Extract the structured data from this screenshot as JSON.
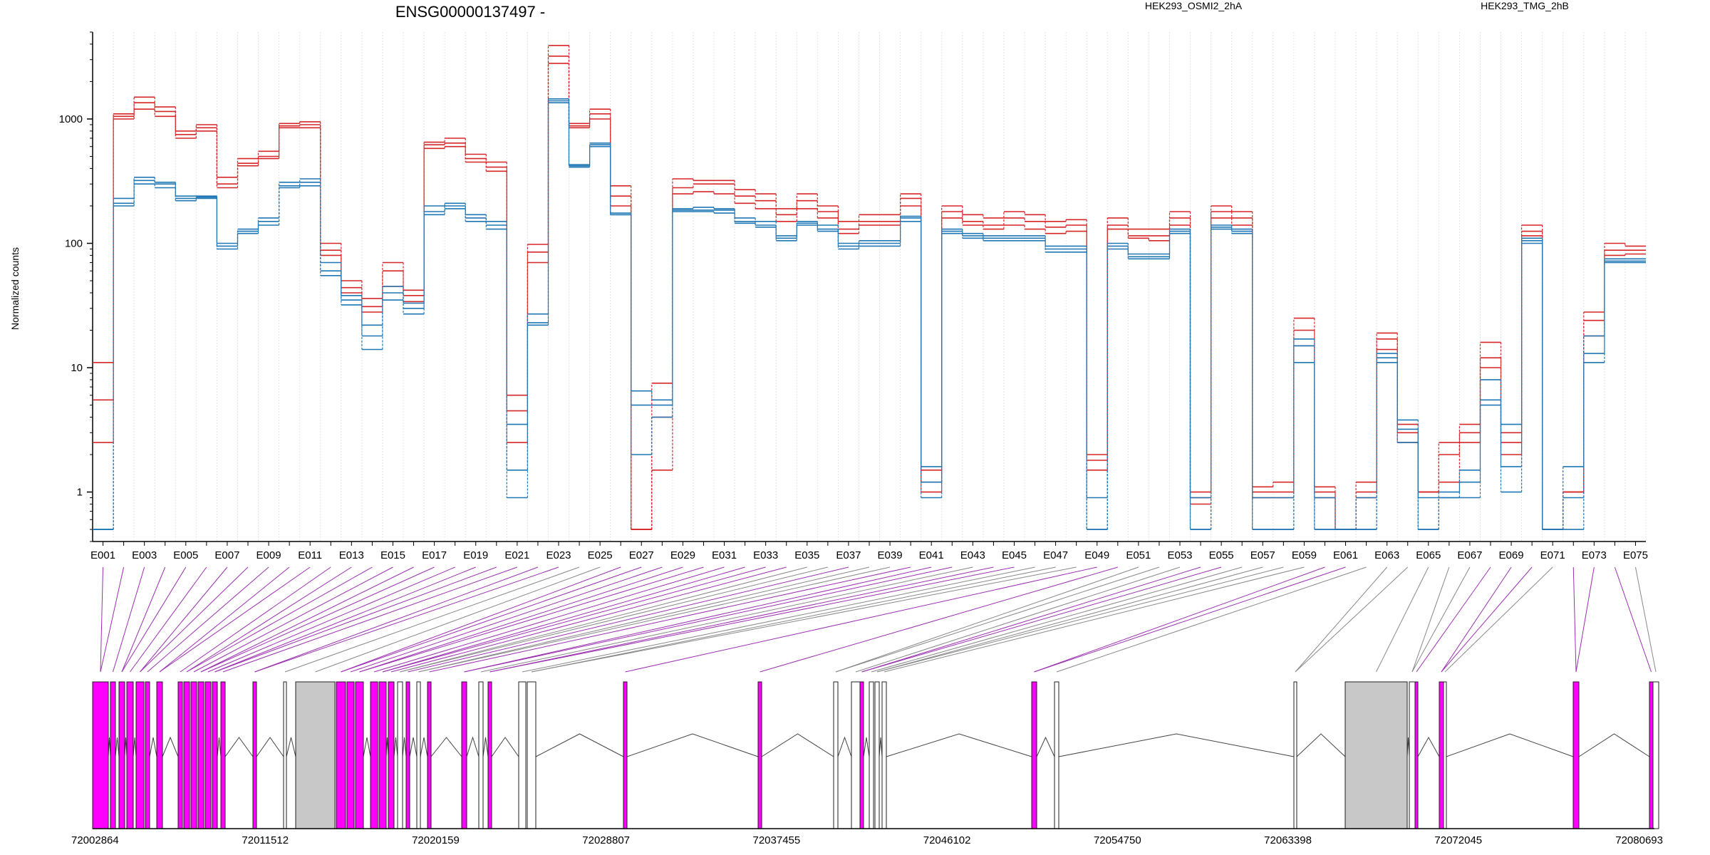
{
  "title": "ENSG00000137497 -",
  "legend": [
    {
      "name": "HEK293_OSMI2_2hA",
      "color": "#d62728"
    },
    {
      "name": "HEK293_TMG_2hB",
      "color": "#1f77b4"
    }
  ],
  "colors": {
    "highlight_exon": "#ff00ff",
    "exon_line": "#9b30b0",
    "plain_line": "#888888",
    "grey_block": "#c8c8c8"
  },
  "chart_data": {
    "type": "line",
    "title": "ENSG00000137497 -",
    "ylabel": "Normalized counts",
    "yscale": "log",
    "ylim": [
      0.4,
      5000
    ],
    "y_ticks": [
      1,
      10,
      100,
      1000
    ],
    "y_tick_labels": [
      "1",
      "10",
      "100",
      "1000"
    ],
    "x_ticklabels": [
      "E001",
      "E003",
      "E005",
      "E007",
      "E009",
      "E011",
      "E013",
      "E015",
      "E017",
      "E019",
      "E021",
      "E023",
      "E025",
      "E027",
      "E029",
      "E031",
      "E033",
      "E035",
      "E037",
      "E039",
      "E041",
      "E043",
      "E045",
      "E047",
      "E049",
      "E051",
      "E053",
      "E055",
      "E057",
      "E059",
      "E061",
      "E063",
      "E065",
      "E067",
      "E069",
      "E071",
      "E073",
      "E075"
    ],
    "exon_count": 75,
    "series": [
      {
        "name": "HEK293_OSMI2_2hA",
        "color": "#d62728",
        "values": [
          11,
          1100,
          1500,
          1250,
          800,
          900,
          340,
          480,
          550,
          920,
          950,
          100,
          50,
          36,
          70,
          42,
          650,
          700,
          520,
          450,
          6,
          98,
          3900,
          920,
          1200,
          290,
          0.5,
          7.5,
          330,
          320,
          320,
          270,
          250,
          190,
          250,
          200,
          150,
          170,
          170,
          250,
          1.5,
          200,
          170,
          160,
          180,
          170,
          150,
          155,
          2,
          160,
          130,
          130,
          180,
          1,
          200,
          180,
          1.1,
          1.2,
          25,
          1.1,
          0.5,
          1.2,
          19,
          3.5,
          1,
          2.5,
          3.5,
          16,
          3,
          140,
          0.5,
          1,
          28,
          100,
          95
        ]
      },
      {
        "name": "HEK293_OSMI2_2hA",
        "color": "#d62728",
        "values": [
          5.5,
          1050,
          1350,
          1150,
          750,
          850,
          300,
          440,
          500,
          880,
          900,
          88,
          44,
          31,
          60,
          38,
          620,
          640,
          480,
          410,
          4.5,
          85,
          3200,
          880,
          1100,
          240,
          0.5,
          4,
          280,
          300,
          300,
          240,
          220,
          170,
          220,
          180,
          130,
          150,
          150,
          230,
          1.2,
          180,
          150,
          140,
          160,
          150,
          135,
          140,
          1.8,
          140,
          115,
          115,
          160,
          0.9,
          180,
          160,
          1,
          1,
          20,
          1,
          0.5,
          1,
          17,
          3,
          1,
          2,
          3,
          12,
          2.5,
          125,
          0.5,
          1,
          24,
          88,
          88
        ]
      },
      {
        "name": "HEK293_OSMI2_2hA",
        "color": "#d62728",
        "values": [
          2.5,
          1000,
          1200,
          1050,
          700,
          800,
          280,
          420,
          480,
          850,
          850,
          80,
          40,
          28,
          45,
          34,
          580,
          600,
          450,
          380,
          2.5,
          70,
          2800,
          850,
          1000,
          200,
          0.5,
          1.5,
          250,
          260,
          250,
          210,
          190,
          150,
          190,
          160,
          120,
          140,
          140,
          200,
          1,
          160,
          140,
          130,
          140,
          130,
          120,
          125,
          1.5,
          130,
          110,
          105,
          140,
          0.8,
          160,
          140,
          0.9,
          0.9,
          15,
          0.9,
          0.5,
          0.9,
          14,
          2.5,
          1,
          1.2,
          2.5,
          10,
          2,
          115,
          0.5,
          1,
          18,
          80,
          82
        ]
      },
      {
        "name": "HEK293_TMG_2hB",
        "color": "#1f77b4",
        "values": [
          0.5,
          230,
          340,
          310,
          240,
          240,
          100,
          130,
          160,
          310,
          330,
          70,
          38,
          22,
          45,
          33,
          200,
          210,
          170,
          150,
          3.5,
          27,
          1450,
          430,
          640,
          175,
          6.5,
          5.5,
          190,
          195,
          190,
          160,
          150,
          115,
          150,
          140,
          100,
          105,
          105,
          165,
          1.6,
          130,
          120,
          115,
          115,
          115,
          95,
          95,
          0.9,
          100,
          82,
          82,
          130,
          0.9,
          140,
          130,
          0.9,
          0.9,
          17,
          0.9,
          0.5,
          0.9,
          13,
          3.8,
          0.9,
          1,
          1.5,
          8,
          3.5,
          110,
          0.5,
          1.6,
          18,
          75,
          75
        ]
      },
      {
        "name": "HEK293_TMG_2hB",
        "color": "#1f77b4",
        "values": [
          0.5,
          210,
          320,
          300,
          230,
          235,
          95,
          125,
          150,
          290,
          310,
          60,
          35,
          18,
          40,
          30,
          180,
          200,
          160,
          140,
          1.5,
          23,
          1400,
          420,
          620,
          170,
          5,
          5,
          185,
          185,
          185,
          150,
          140,
          110,
          145,
          130,
          95,
          100,
          100,
          160,
          1.2,
          125,
          115,
          110,
          110,
          110,
          90,
          90,
          0.5,
          95,
          78,
          78,
          125,
          0.5,
          135,
          125,
          0.5,
          0.5,
          15,
          0.5,
          0.5,
          0.5,
          12,
          3.2,
          0.5,
          0.9,
          1.2,
          5.5,
          1.6,
          105,
          0.5,
          0.9,
          13,
          72,
          72
        ]
      },
      {
        "name": "HEK293_TMG_2hB",
        "color": "#1f77b4",
        "values": [
          0.5,
          200,
          300,
          280,
          220,
          230,
          90,
          120,
          140,
          280,
          290,
          55,
          32,
          14,
          35,
          27,
          170,
          190,
          150,
          130,
          0.9,
          22,
          1350,
          410,
          600,
          170,
          2,
          4,
          180,
          180,
          175,
          145,
          135,
          105,
          140,
          125,
          90,
          95,
          95,
          150,
          0.9,
          120,
          110,
          105,
          105,
          105,
          85,
          85,
          0.5,
          90,
          75,
          75,
          120,
          0.5,
          130,
          120,
          0.5,
          0.5,
          11,
          0.5,
          0.5,
          0.5,
          11,
          2.5,
          0.5,
          0.9,
          0.9,
          5,
          1,
          100,
          0.5,
          0.5,
          11,
          70,
          70
        ]
      }
    ],
    "genomic_ticks": [
      "72002864",
      "72011512",
      "72020159",
      "72028807",
      "72037455",
      "72046102",
      "72054750",
      "72063398",
      "72072045",
      "72080693"
    ]
  }
}
